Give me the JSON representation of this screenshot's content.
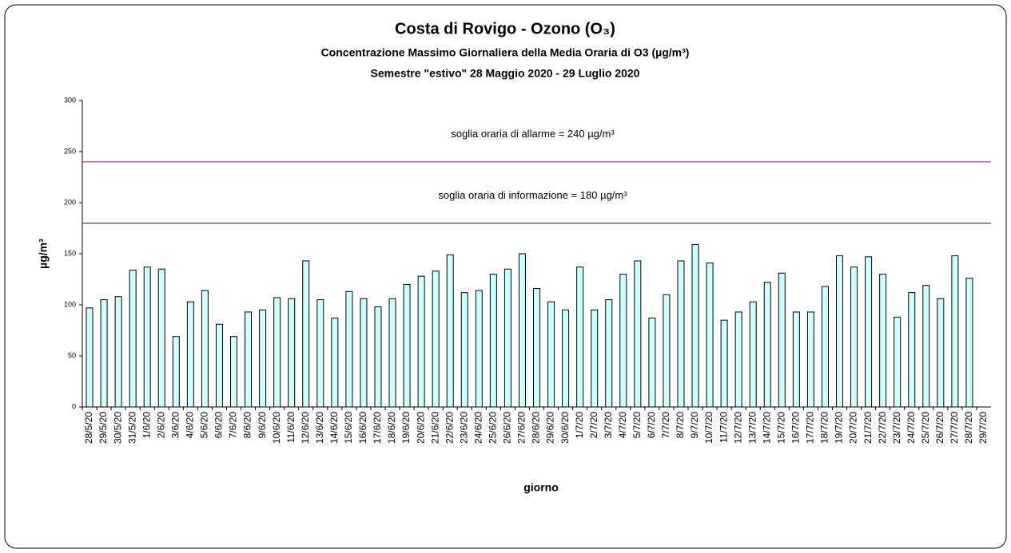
{
  "chart_data": {
    "type": "bar",
    "title": "Costa di Rovigo - Ozono (O₃)",
    "subtitle": "Concentrazione  Massimo Giornaliera della Media Oraria di O3 (µg/m³)",
    "subtitle2": "Semestre \"estivo\" 28 Maggio 2020 - 29 Luglio 2020",
    "y_label": "µg/m³",
    "x_label": "giorno",
    "color": "#ccffff",
    "categories": [
      "28/5/20",
      "29/5/20",
      "30/5/20",
      "31/5/20",
      "1/6/20",
      "2/6/20",
      "3/6/20",
      "4/6/20",
      "5/6/20",
      "6/6/20",
      "7/6/20",
      "8/6/20",
      "9/6/20",
      "10/6/20",
      "11/6/20",
      "12/6/20",
      "13/6/20",
      "14/6/20",
      "15/6/20",
      "16/6/20",
      "17/6/20",
      "18/6/20",
      "19/6/20",
      "20/6/20",
      "21/6/20",
      "22/6/20",
      "23/6/20",
      "24/6/20",
      "25/6/20",
      "26/6/20",
      "27/6/20",
      "28/6/20",
      "29/6/20",
      "30/6/20",
      "1/7/20",
      "2/7/20",
      "3/7/20",
      "4/7/20",
      "5/7/20",
      "6/7/20",
      "7/7/20",
      "8/7/20",
      "9/7/20",
      "10/7/20",
      "11/7/20",
      "12/7/20",
      "13/7/20",
      "14/7/20",
      "15/7/20",
      "16/7/20",
      "17/7/20",
      "18/7/20",
      "19/7/20",
      "20/7/20",
      "21/7/20",
      "22/7/20",
      "23/7/20",
      "24/7/20",
      "25/7/20",
      "26/7/20",
      "27/7/20",
      "28/7/20",
      "29/7/20"
    ],
    "values": [
      97,
      105,
      108,
      134,
      137,
      135,
      69,
      103,
      114,
      81,
      69,
      93,
      95,
      107,
      106,
      143,
      105,
      87,
      113,
      106,
      98,
      106,
      120,
      128,
      133,
      149,
      112,
      114,
      130,
      135,
      150,
      116,
      103,
      95,
      137,
      95,
      105,
      130,
      143,
      87,
      110,
      143,
      159,
      141,
      85,
      93,
      103,
      122,
      131,
      93,
      93,
      118,
      148,
      137,
      147,
      130,
      88,
      112,
      119,
      106,
      148,
      126,
      null
    ],
    "ylim": [
      0,
      300
    ],
    "yticks": [
      0,
      50,
      100,
      150,
      200,
      250,
      300
    ],
    "thresholds": [
      {
        "label": "soglia oraria di allarme = 240 µg/m³",
        "value": 240,
        "color": "#993399"
      },
      {
        "label": "soglia oraria di informazione = 180 µg/m³",
        "value": 180,
        "color": "#3333cc"
      }
    ]
  }
}
